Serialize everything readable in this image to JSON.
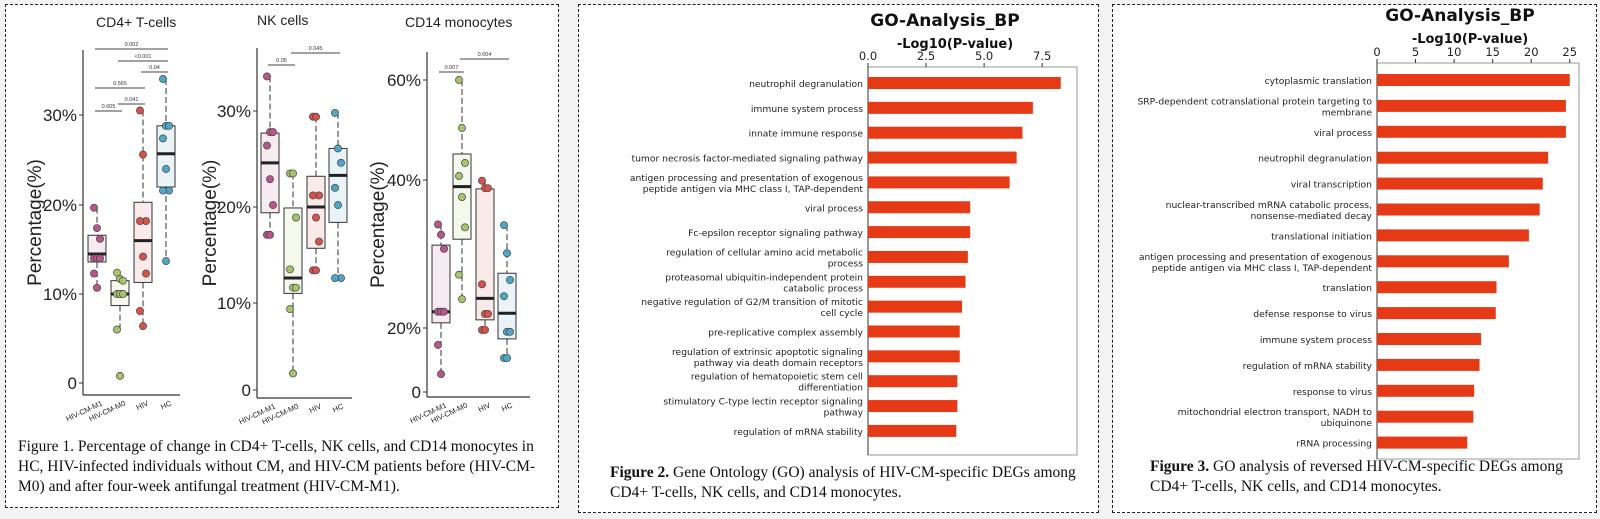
{
  "colors": {
    "HIV-CM-M1": "#b8558c",
    "HIV-CM-M0": "#a5c46c",
    "HIV": "#d9524a",
    "HC": "#4ea7c6",
    "bar": "#e63a17"
  },
  "figure1": {
    "caption": "Figure 1. Percentage of change in CD4+ T-cells, NK cells, and CD14 monocytes in HC, HIV-infected individuals without CM, and HIV-CM patients before (HIV-CM-M0) and after four-week antifungal treatment (HIV-CM-M1).",
    "chart_data": [
      {
        "type": "box",
        "title": "CD4+ T-cells",
        "ylabel": "Percentage(%)",
        "categories": [
          "HIV-CM-M1",
          "HIV-CM-M0",
          "HIV",
          "HC"
        ],
        "yticks": [
          {
            "v": 0,
            "label": "0"
          },
          {
            "v": 10,
            "label": "10%"
          },
          {
            "v": 20,
            "label": "20%"
          },
          {
            "v": 30,
            "label": "30%"
          }
        ],
        "groups": [
          {
            "q1": 13.6,
            "median": 14.5,
            "q3": 16.6,
            "whisker": [
              10.7,
              19.7
            ],
            "points": [
              19.7,
              17.4,
              16.2,
              14,
              14,
              14,
              12.3,
              10.7
            ]
          },
          {
            "q1": 8.7,
            "median": 10,
            "q3": 11.5,
            "whisker": [
              6.0,
              12.4
            ],
            "points": [
              12.4,
              11.7,
              11.5,
              10,
              10,
              10,
              6.0,
              0.8
            ]
          },
          {
            "q1": 11.3,
            "median": 16,
            "q3": 20.3,
            "whisker": [
              6.4,
              30.5
            ],
            "points": [
              30.5,
              25.6,
              18.2,
              18.2,
              14.2,
              12.3,
              8.1,
              6.4
            ]
          },
          {
            "q1": 22,
            "median": 25.7,
            "q3": 28.8,
            "whisker": [
              13.7,
              34
            ],
            "points": [
              34,
              28.8,
              28.8,
              27.4,
              24,
              21.6,
              21.6,
              13.7
            ]
          }
        ],
        "comparisons": [
          {
            "a": 0,
            "b": 1,
            "p": "0.005"
          },
          {
            "a": 1,
            "b": 2,
            "p": "0.041"
          },
          {
            "a": 0,
            "b": 2,
            "p": "0.565"
          },
          {
            "a": 2,
            "b": 3,
            "p": "0.04"
          },
          {
            "a": 1,
            "b": 3,
            "p": "<0.001"
          },
          {
            "a": 0,
            "b": 3,
            "p": "0.002"
          }
        ]
      },
      {
        "type": "box",
        "title": "NK cells",
        "ylabel": "Percentage(%)",
        "categories": [
          "HIV-CM-M1",
          "HIV-CM-M0",
          "HIV",
          "HC"
        ],
        "yticks": [
          {
            "v": 0,
            "label": "0"
          },
          {
            "v": 10,
            "label": "10%"
          },
          {
            "v": 20,
            "label": "20%"
          },
          {
            "v": 30,
            "label": "30%"
          }
        ],
        "groups": [
          {
            "q1": 19.4,
            "median": 24.6,
            "q3": 27.7,
            "whisker": [
              17.1,
              33.6
            ],
            "points": [
              33.6,
              27.8,
              27.8,
              26.4,
              22.9,
              20.2,
              17.1,
              17.1
            ]
          },
          {
            "q1": 11,
            "median": 12.6,
            "q3": 19.9,
            "whisker": [
              1.9,
              23.5
            ],
            "points": [
              23.5,
              23.5,
              18.9,
              13.5,
              11.6,
              11.6,
              9.3,
              1.9
            ]
          },
          {
            "q1": 15.7,
            "median": 20,
            "q3": 23.2,
            "whisker": [
              13.4,
              29.4
            ],
            "points": [
              29.4,
              29.4,
              21.2,
              21.2,
              18.9,
              16.4,
              13.4,
              13.4
            ]
          },
          {
            "q1": 18.4,
            "median": 23.3,
            "q3": 26.1,
            "whisker": [
              12.6,
              29.8
            ],
            "points": [
              29.8,
              26.1,
              24.6,
              22,
              20.2,
              12.6,
              12.6
            ]
          }
        ],
        "comparisons": [
          {
            "a": 0,
            "b": 1,
            "p": "0.05"
          },
          {
            "a": 1,
            "b": 3,
            "p": "0.045"
          }
        ]
      },
      {
        "type": "box",
        "title": "CD14 monocytes",
        "ylabel": "Percentage(%)",
        "categories": [
          "HIV-CM-M1",
          "HIV-CM-M0",
          "HIV",
          "HC"
        ],
        "yticks": [
          {
            "v": 0,
            "label": "0"
          },
          {
            "v": 20,
            "label": "20%"
          },
          {
            "v": 40,
            "label": "40%"
          },
          {
            "v": 60,
            "label": "60%"
          }
        ],
        "groups": [
          {
            "q1": 20.7,
            "median": 22.2,
            "q3": 31.2,
            "whisker": [
              5.6,
              34
            ],
            "points": [
              34,
              32.6,
              30.7,
              22.2,
              22.2,
              22.2,
              14.7,
              5.6
            ]
          },
          {
            "q1": 32,
            "median": 39.1,
            "q3": 45.2,
            "whisker": [
              23.9,
              60
            ],
            "points": [
              60,
              50.4,
              43.4,
              40.8,
              37.7,
              33.6,
              27.2,
              23.9
            ]
          },
          {
            "q1": 21.1,
            "median": 24,
            "q3": 38.8,
            "whisker": [
              19.4,
              39.9
            ],
            "points": [
              39.9,
              38.9,
              38.9,
              25.9,
              21.9,
              21.9,
              19.4,
              19.4
            ]
          },
          {
            "q1": 16.6,
            "median": 22,
            "q3": 27.4,
            "whisker": [
              10.6,
              33.9
            ],
            "points": [
              33.9,
              30.1,
              26.5,
              24.3,
              18.8,
              18.8,
              10.6,
              10.6
            ]
          }
        ],
        "comparisons": [
          {
            "a": 0,
            "b": 1,
            "p": "0.007"
          },
          {
            "a": 1,
            "b": 3,
            "p": "0.004"
          }
        ]
      }
    ]
  },
  "figure2": {
    "caption_bold": "Figure 2.",
    "caption": " Gene Ontology (GO) analysis of HIV-CM-specific DEGs among CD4+ T-cells, NK cells, and CD14 monocytes.",
    "chart_data": {
      "type": "bar",
      "orientation": "horizontal",
      "title": "GO-Analysis_BP",
      "xlabel": "-Log10(P-value)",
      "xlim": [
        0,
        9
      ],
      "xticks": [
        "0.0",
        "2.5",
        "5.0",
        "7.5"
      ],
      "categories": [
        "neutrophil degranulation",
        "immune system process",
        "innate immune response",
        "tumor necrosis factor-mediated signaling pathway",
        "antigen processing and presentation of exogenous\npeptide antigen via MHC class I, TAP-dependent",
        "viral process",
        "Fc-epsilon receptor signaling pathway",
        "regulation of cellular amino acid metabolic\nprocess",
        "proteasomal ubiquitin-independent protein\ncatabolic process",
        "negative regulation of G2/M transition of mitotic\ncell cycle",
        "pre-replicative complex assembly",
        "regulation of extrinsic apoptotic signaling\npathway via death domain receptors",
        "regulation of hematopoietic stem cell\ndifferentiation",
        "stimulatory C-type lectin receptor signaling\npathway",
        "regulation of mRNA stability"
      ],
      "values": [
        8.3,
        7.1,
        6.65,
        6.4,
        6.1,
        4.4,
        4.4,
        4.3,
        4.2,
        4.05,
        3.95,
        3.95,
        3.85,
        3.85,
        3.8
      ]
    }
  },
  "figure3": {
    "caption_bold": "Figure 3.",
    "caption": " GO analysis of reversed HIV-CM-specific DEGs among CD4+ T-cells, NK cells, and CD14 monocytes.",
    "chart_data": {
      "type": "bar",
      "orientation": "horizontal",
      "title": "GO-Analysis_BP",
      "xlabel": "-Log10(P-value)",
      "xlim": [
        0,
        26.2
      ],
      "xticks": [
        "0",
        "5",
        "10",
        "15",
        "20",
        "25"
      ],
      "categories": [
        "cytoplasmic translation",
        "SRP-dependent cotranslational protein targeting to\nmembrane",
        "viral process",
        "neutrophil degranulation",
        "viral transcription",
        "nuclear-transcribed mRNA catabolic process,\nnonsense-mediated decay",
        "translational initiation",
        "antigen processing and presentation of exogenous\npeptide antigen via MHC class I, TAP-dependent",
        "translation",
        "defense response to virus",
        "immune system process",
        "regulation of mRNA stability",
        "response to virus",
        "mitochondrial electron transport, NADH to\nubiquinone",
        "rRNA processing"
      ],
      "values": [
        25.0,
        24.5,
        24.5,
        22.2,
        21.5,
        21.1,
        19.7,
        17.1,
        15.5,
        15.4,
        13.5,
        13.3,
        12.6,
        12.5,
        11.7
      ]
    }
  }
}
